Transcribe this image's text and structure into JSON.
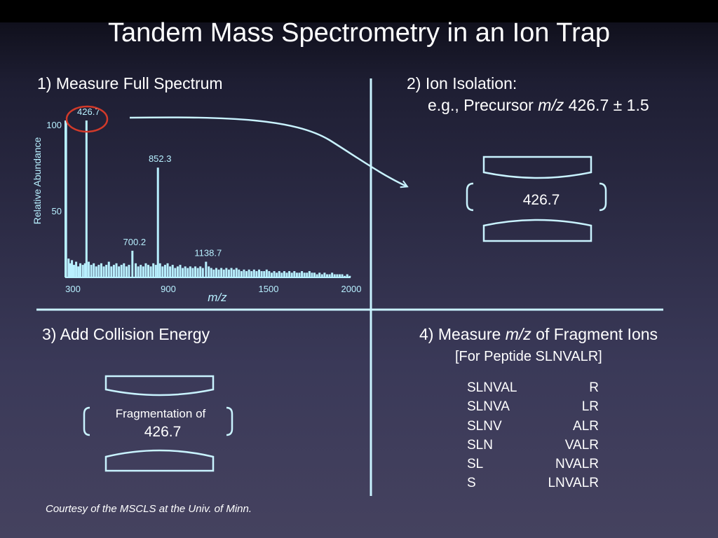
{
  "title": "Tandem Mass Spectrometry in an Ion Trap",
  "step1": {
    "label": "1) Measure Full Spectrum"
  },
  "step2": {
    "label": "2) Ion Isolation:",
    "line2_prefix": "e.g., Precursor ",
    "line2_italic": "m/z",
    "line2_value": " 426.7 ± 1.5",
    "trap_value": "426.7"
  },
  "step3": {
    "label": "3) Add Collision Energy",
    "trap_line1": "Fragmentation of",
    "trap_line2": "426.7"
  },
  "step4": {
    "label_prefix": "4) Measure ",
    "label_italic": "m/z",
    "label_suffix": " of Fragment Ions",
    "subtitle": "[For Peptide SLNVALR]",
    "fragments": [
      {
        "left": "SLNVAL",
        "right": "R"
      },
      {
        "left": "SLNVA",
        "right": "LR"
      },
      {
        "left": "SLNV",
        "right": "ALR"
      },
      {
        "left": "SLN",
        "right": "VALR"
      },
      {
        "left": "SL",
        "right": "NVALR"
      },
      {
        "left": "S",
        "right": "LNVALR"
      }
    ]
  },
  "chart_data": {
    "type": "bar",
    "ylabel": "Relative Abundance",
    "xlabel": "m/z",
    "xlim": [
      300,
      2000
    ],
    "ylim": [
      0,
      100
    ],
    "x_ticks": [
      "300",
      "900",
      "1500",
      "2000"
    ],
    "y_ticks": [
      "100",
      "50"
    ],
    "peaks": [
      {
        "mz": 426.7,
        "abundance": 100,
        "label": "426.7",
        "highlighted": true
      },
      {
        "mz": 852.3,
        "abundance": 70,
        "label": "852.3"
      },
      {
        "mz": 700.2,
        "abundance": 17,
        "label": "700.2"
      },
      {
        "mz": 1138.7,
        "abundance": 10,
        "label": "1138.7"
      }
    ],
    "noise": [
      [
        305,
        100
      ],
      [
        320,
        12
      ],
      [
        330,
        9
      ],
      [
        340,
        11
      ],
      [
        352,
        8
      ],
      [
        365,
        10
      ],
      [
        378,
        7
      ],
      [
        390,
        9
      ],
      [
        405,
        8
      ],
      [
        418,
        9
      ],
      [
        440,
        10
      ],
      [
        455,
        8
      ],
      [
        470,
        9
      ],
      [
        485,
        7
      ],
      [
        500,
        8
      ],
      [
        515,
        9
      ],
      [
        530,
        7
      ],
      [
        545,
        8
      ],
      [
        560,
        10
      ],
      [
        575,
        7
      ],
      [
        590,
        8
      ],
      [
        605,
        9
      ],
      [
        620,
        7
      ],
      [
        635,
        8
      ],
      [
        650,
        9
      ],
      [
        665,
        7
      ],
      [
        680,
        8
      ],
      [
        720,
        9
      ],
      [
        735,
        7
      ],
      [
        750,
        8
      ],
      [
        765,
        7
      ],
      [
        780,
        9
      ],
      [
        795,
        8
      ],
      [
        810,
        7
      ],
      [
        825,
        9
      ],
      [
        840,
        8
      ],
      [
        865,
        9
      ],
      [
        880,
        7
      ],
      [
        895,
        8
      ],
      [
        910,
        9
      ],
      [
        925,
        7
      ],
      [
        940,
        8
      ],
      [
        955,
        6
      ],
      [
        970,
        7
      ],
      [
        985,
        8
      ],
      [
        1000,
        6
      ],
      [
        1015,
        7
      ],
      [
        1030,
        6
      ],
      [
        1045,
        7
      ],
      [
        1060,
        6
      ],
      [
        1075,
        7
      ],
      [
        1090,
        6
      ],
      [
        1105,
        7
      ],
      [
        1120,
        6
      ],
      [
        1155,
        7
      ],
      [
        1170,
        6
      ],
      [
        1185,
        5
      ],
      [
        1200,
        6
      ],
      [
        1215,
        5
      ],
      [
        1230,
        6
      ],
      [
        1245,
        5
      ],
      [
        1260,
        6
      ],
      [
        1275,
        5
      ],
      [
        1290,
        6
      ],
      [
        1305,
        5
      ],
      [
        1320,
        6
      ],
      [
        1335,
        5
      ],
      [
        1350,
        4
      ],
      [
        1365,
        5
      ],
      [
        1380,
        4
      ],
      [
        1395,
        5
      ],
      [
        1410,
        4
      ],
      [
        1425,
        5
      ],
      [
        1440,
        4
      ],
      [
        1455,
        5
      ],
      [
        1470,
        4
      ],
      [
        1485,
        4
      ],
      [
        1500,
        5
      ],
      [
        1515,
        4
      ],
      [
        1530,
        3
      ],
      [
        1545,
        4
      ],
      [
        1560,
        3
      ],
      [
        1575,
        4
      ],
      [
        1590,
        3
      ],
      [
        1605,
        4
      ],
      [
        1620,
        3
      ],
      [
        1635,
        4
      ],
      [
        1650,
        3
      ],
      [
        1665,
        4
      ],
      [
        1680,
        3
      ],
      [
        1695,
        3
      ],
      [
        1710,
        4
      ],
      [
        1725,
        3
      ],
      [
        1740,
        3
      ],
      [
        1755,
        4
      ],
      [
        1770,
        3
      ],
      [
        1785,
        3
      ],
      [
        1800,
        2
      ],
      [
        1815,
        3
      ],
      [
        1830,
        2
      ],
      [
        1845,
        3
      ],
      [
        1860,
        2
      ],
      [
        1875,
        2
      ],
      [
        1890,
        3
      ],
      [
        1905,
        2
      ],
      [
        1920,
        2
      ],
      [
        1935,
        2
      ],
      [
        1950,
        2
      ],
      [
        1965,
        1
      ],
      [
        1980,
        2
      ],
      [
        1995,
        1
      ]
    ]
  },
  "courtesy": "Courtesy of the MSCLS at the Univ. of Minn.",
  "colors": {
    "spectrum": "#b8f0ff",
    "highlight_circle": "#d23a2a",
    "lines": "#c9f3ff"
  }
}
